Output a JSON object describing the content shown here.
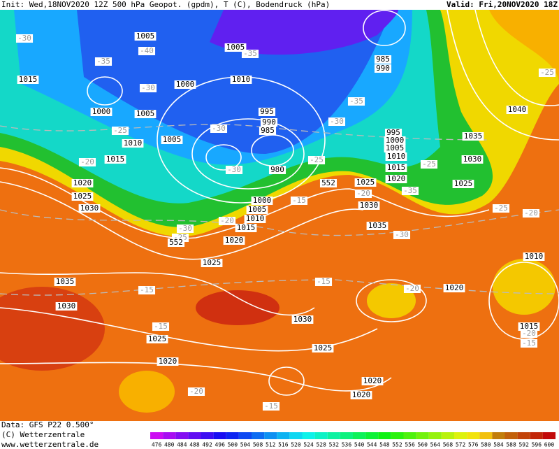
{
  "header": {
    "init": "Init: Wed,18NOV2020 12Z 500 hPa Geopot. (gpdm), T (C), Bodendruck (hPa)",
    "valid": "Valid: Fri,20NOV2020 18Z"
  },
  "map": {
    "isobar_labels": [
      1005,
      1005,
      1000,
      1010,
      1015,
      1000,
      1005,
      995,
      990,
      985,
      1005,
      1010,
      1015,
      980,
      1020,
      1025,
      1030,
      1000,
      1005,
      1010,
      1015,
      1020,
      1025,
      1035,
      1030,
      1030,
      1025,
      1025,
      1020,
      1020,
      1020,
      985,
      990,
      995,
      1000,
      1005,
      1010,
      1015,
      1020,
      1025,
      1030,
      1035,
      1040,
      1035,
      1030,
      1025,
      1010,
      1020,
      1015
    ],
    "temperature_labels": [
      -30,
      -40,
      -35,
      -30,
      -35,
      -25,
      -20,
      -30,
      -30,
      -35,
      -30,
      -25,
      -20,
      -25,
      -35,
      -15,
      -20,
      -30,
      -25,
      -30,
      -25,
      -20,
      -15,
      -20,
      -15,
      -15,
      -20,
      -15,
      -20,
      -15,
      -25
    ],
    "geopotential_labels": [
      552,
      552
    ]
  },
  "footer": {
    "data": "Data: GFS P22 0.500°",
    "copyright": "(C) Wetterzentrale",
    "url": "www.wetterzentrale.de"
  },
  "colorbar": {
    "values": [
      476,
      480,
      484,
      488,
      492,
      496,
      500,
      504,
      508,
      512,
      516,
      520,
      524,
      528,
      532,
      536,
      540,
      544,
      548,
      552,
      556,
      560,
      564,
      568,
      572,
      576,
      580,
      584,
      588,
      592,
      596,
      600
    ]
  }
}
